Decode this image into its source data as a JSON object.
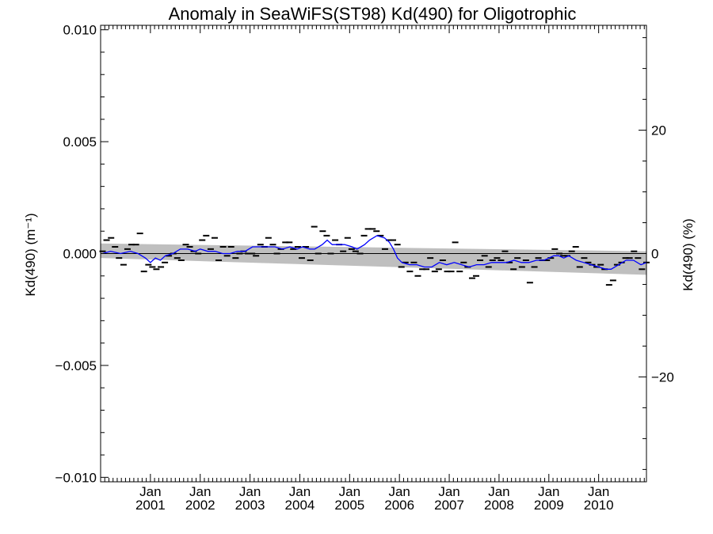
{
  "chart_data": {
    "type": "line",
    "title": "Anomaly in SeaWiFS(ST98) Kd(490) for Oligotrophic",
    "ylabel_left": "Kd(490) (m⁻¹)",
    "ylabel_right": "Kd(490) (%)",
    "xlabel": "",
    "ylim_left": [
      -0.0102,
      0.0102
    ],
    "ylim_right": [
      -37,
      37
    ],
    "xlim": [
      2000.0,
      2010.96
    ],
    "yticks_left": [
      {
        "value": 0.01,
        "label": "0.010"
      },
      {
        "value": 0.005,
        "label": "0.005"
      },
      {
        "value": 0.0,
        "label": "0.000"
      },
      {
        "value": -0.005,
        "label": "−0.005"
      },
      {
        "value": -0.01,
        "label": "−0.010"
      }
    ],
    "yticks_right": [
      {
        "value": 20,
        "label": "20"
      },
      {
        "value": 0,
        "label": "0"
      },
      {
        "value": -20,
        "label": "−20"
      }
    ],
    "xticks": [
      {
        "value": 2001.0,
        "line1": "Jan",
        "line2": "2001"
      },
      {
        "value": 2002.0,
        "line1": "Jan",
        "line2": "2002"
      },
      {
        "value": 2003.0,
        "line1": "Jan",
        "line2": "2003"
      },
      {
        "value": 2004.0,
        "line1": "Jan",
        "line2": "2004"
      },
      {
        "value": 2005.0,
        "line1": "Jan",
        "line2": "2005"
      },
      {
        "value": 2006.0,
        "line1": "Jan",
        "line2": "2006"
      },
      {
        "value": 2007.0,
        "line1": "Jan",
        "line2": "2007"
      },
      {
        "value": 2008.0,
        "line1": "Jan",
        "line2": "2008"
      },
      {
        "value": 2009.0,
        "line1": "Jan",
        "line2": "2009"
      },
      {
        "value": 2010.0,
        "line1": "Jan",
        "line2": "2010"
      }
    ],
    "grid": false,
    "colors": {
      "running_mean": "#0000ff",
      "monthly_points": "#000000",
      "confidence_band": "#bfbfbf",
      "trend_line": "#000000"
    },
    "zero_line": 0.0,
    "confidence_band": {
      "x": [
        2000.0,
        2010.96
      ],
      "upper": [
        0.00045,
        0.0001
      ],
      "lower": [
        -0.0002,
        -0.00095
      ]
    },
    "trend_line": {
      "x": [
        2000.0,
        2010.96
      ],
      "y": [
        0.0,
        0.0
      ]
    },
    "series": [
      {
        "values": [
          [
            2000.04,
            0.0001
          ],
          [
            2000.12,
            0.0006
          ],
          [
            2000.21,
            0.0007
          ],
          [
            2000.29,
            0.0003
          ],
          [
            2000.37,
            -0.0002
          ],
          [
            2000.46,
            -0.0005
          ],
          [
            2000.54,
            0.0002
          ],
          [
            2000.62,
            0.0004
          ],
          [
            2000.71,
            0.0004
          ],
          [
            2000.79,
            0.0009
          ],
          [
            2000.87,
            -0.0008
          ],
          [
            2000.96,
            -0.0005
          ],
          [
            2001.04,
            -0.0006
          ],
          [
            2001.12,
            -0.0007
          ],
          [
            2001.21,
            -0.0006
          ],
          [
            2001.29,
            -0.0004
          ],
          [
            2001.37,
            -0.0001
          ],
          [
            2001.46,
            0.0
          ],
          [
            2001.54,
            -0.0002
          ],
          [
            2001.62,
            -0.0003
          ],
          [
            2001.71,
            0.0004
          ],
          [
            2001.79,
            0.0003
          ],
          [
            2001.87,
            0.0001
          ],
          [
            2001.96,
            0.0
          ],
          [
            2002.04,
            0.0006
          ],
          [
            2002.12,
            0.0008
          ],
          [
            2002.21,
            0.0002
          ],
          [
            2002.29,
            0.0007
          ],
          [
            2002.37,
            -0.0003
          ],
          [
            2002.46,
            0.0003
          ],
          [
            2002.54,
            -0.0001
          ],
          [
            2002.62,
            0.0003
          ],
          [
            2002.71,
            -0.0002
          ],
          [
            2002.79,
            0.0
          ],
          [
            2002.87,
            0.0001
          ],
          [
            2002.96,
            0.0
          ],
          [
            2003.04,
            0.0
          ],
          [
            2003.12,
            -0.0001
          ],
          [
            2003.21,
            0.0004
          ],
          [
            2003.29,
            0.0003
          ],
          [
            2003.37,
            0.0007
          ],
          [
            2003.46,
            0.0004
          ],
          [
            2003.54,
            0.0
          ],
          [
            2003.62,
            0.0002
          ],
          [
            2003.71,
            0.0005
          ],
          [
            2003.79,
            0.0005
          ],
          [
            2003.87,
            0.0002
          ],
          [
            2003.96,
            0.0003
          ],
          [
            2004.04,
            -0.0002
          ],
          [
            2004.12,
            0.0003
          ],
          [
            2004.21,
            -0.0003
          ],
          [
            2004.29,
            0.0012
          ],
          [
            2004.37,
            0.0
          ],
          [
            2004.46,
            0.001
          ],
          [
            2004.54,
            0.0008
          ],
          [
            2004.62,
            0.0
          ],
          [
            2004.71,
            0.0006
          ],
          [
            2004.79,
            0.0004
          ],
          [
            2004.87,
            0.0001
          ],
          [
            2004.96,
            0.0007
          ],
          [
            2005.04,
            0.0002
          ],
          [
            2005.12,
            0.0001
          ],
          [
            2005.21,
            0.0
          ],
          [
            2005.29,
            0.0008
          ],
          [
            2005.37,
            0.0011
          ],
          [
            2005.46,
            0.0011
          ],
          [
            2005.54,
            0.001
          ],
          [
            2005.62,
            0.0008
          ],
          [
            2005.71,
            0.0002
          ],
          [
            2005.79,
            0.0006
          ],
          [
            2005.87,
            0.0006
          ],
          [
            2005.96,
            0.0004
          ],
          [
            2006.04,
            -0.0006
          ],
          [
            2006.12,
            -0.0004
          ],
          [
            2006.21,
            -0.0008
          ],
          [
            2006.29,
            -0.0004
          ],
          [
            2006.37,
            -0.001
          ],
          [
            2006.46,
            -0.0007
          ],
          [
            2006.54,
            -0.0007
          ],
          [
            2006.62,
            -0.0002
          ],
          [
            2006.71,
            -0.0008
          ],
          [
            2006.79,
            -0.0007
          ],
          [
            2006.87,
            -0.0003
          ],
          [
            2006.96,
            -0.0008
          ],
          [
            2007.04,
            -0.0008
          ],
          [
            2007.12,
            0.0005
          ],
          [
            2007.21,
            -0.0008
          ],
          [
            2007.29,
            -0.0004
          ],
          [
            2007.37,
            -0.0006
          ],
          [
            2007.46,
            -0.0011
          ],
          [
            2007.54,
            -0.001
          ],
          [
            2007.62,
            -0.0003
          ],
          [
            2007.71,
            -0.0001
          ],
          [
            2007.79,
            -0.0006
          ],
          [
            2007.87,
            -0.0003
          ],
          [
            2007.96,
            -0.0002
          ],
          [
            2008.04,
            -0.0003
          ],
          [
            2008.12,
            0.0001
          ],
          [
            2008.21,
            -0.0004
          ],
          [
            2008.29,
            -0.0007
          ],
          [
            2008.37,
            -0.0002
          ],
          [
            2008.46,
            -0.0006
          ],
          [
            2008.54,
            -0.0003
          ],
          [
            2008.62,
            -0.0013
          ],
          [
            2008.71,
            -0.0006
          ],
          [
            2008.79,
            -0.0002
          ],
          [
            2008.87,
            -0.0003
          ],
          [
            2008.96,
            -0.0003
          ],
          [
            2009.04,
            -0.0002
          ],
          [
            2009.12,
            0.0002
          ],
          [
            2009.21,
            0.0
          ],
          [
            2009.29,
            -0.0001
          ],
          [
            2009.37,
            -0.0001
          ],
          [
            2009.46,
            0.0001
          ],
          [
            2009.54,
            0.0003
          ],
          [
            2009.62,
            -0.0006
          ],
          [
            2009.71,
            -0.0002
          ],
          [
            2009.79,
            -0.0004
          ],
          [
            2009.87,
            -0.0005
          ],
          [
            2009.96,
            -0.0006
          ],
          [
            2010.04,
            -0.0005
          ],
          [
            2010.12,
            -0.0007
          ],
          [
            2010.21,
            -0.0014
          ],
          [
            2010.29,
            -0.0012
          ],
          [
            2010.37,
            -0.0005
          ],
          [
            2010.46,
            -0.0004
          ],
          [
            2010.54,
            -0.0002
          ],
          [
            2010.62,
            -0.0002
          ],
          [
            2010.71,
            0.0001
          ],
          [
            2010.79,
            -0.0002
          ],
          [
            2010.87,
            -0.0007
          ],
          [
            2010.96,
            -0.0004
          ]
        ]
      },
      {
        "values": [
          [
            2000.04,
            0.0
          ],
          [
            2000.2,
            0.0001
          ],
          [
            2000.4,
            0.0
          ],
          [
            2000.6,
            0.0001
          ],
          [
            2000.75,
            0.0
          ],
          [
            2000.9,
            -0.0002
          ],
          [
            2001.0,
            -0.0004
          ],
          [
            2001.1,
            -0.0002
          ],
          [
            2001.2,
            -0.0003
          ],
          [
            2001.3,
            -0.0001
          ],
          [
            2001.45,
            0.0
          ],
          [
            2001.6,
            0.0002
          ],
          [
            2001.75,
            0.0002
          ],
          [
            2001.9,
            0.0001
          ],
          [
            2002.0,
            0.0002
          ],
          [
            2002.15,
            0.0001
          ],
          [
            2002.3,
            0.0001
          ],
          [
            2002.45,
            0.0
          ],
          [
            2002.6,
            0.0
          ],
          [
            2002.75,
            0.0001
          ],
          [
            2002.9,
            0.0001
          ],
          [
            2003.05,
            0.0003
          ],
          [
            2003.2,
            0.0003
          ],
          [
            2003.35,
            0.0003
          ],
          [
            2003.5,
            0.0003
          ],
          [
            2003.65,
            0.0002
          ],
          [
            2003.8,
            0.0003
          ],
          [
            2003.95,
            0.0002
          ],
          [
            2004.05,
            0.0003
          ],
          [
            2004.2,
            0.0002
          ],
          [
            2004.3,
            0.0002
          ],
          [
            2004.45,
            0.0004
          ],
          [
            2004.55,
            0.0006
          ],
          [
            2004.65,
            0.0004
          ],
          [
            2004.8,
            0.0004
          ],
          [
            2004.9,
            0.0004
          ],
          [
            2005.05,
            0.0003
          ],
          [
            2005.15,
            0.0002
          ],
          [
            2005.3,
            0.0004
          ],
          [
            2005.4,
            0.0006
          ],
          [
            2005.55,
            0.0008
          ],
          [
            2005.7,
            0.0007
          ],
          [
            2005.8,
            0.0005
          ],
          [
            2005.88,
            0.0002
          ],
          [
            2005.96,
            -0.0002
          ],
          [
            2006.05,
            -0.0004
          ],
          [
            2006.2,
            -0.0005
          ],
          [
            2006.35,
            -0.0005
          ],
          [
            2006.5,
            -0.0006
          ],
          [
            2006.65,
            -0.0006
          ],
          [
            2006.8,
            -0.0004
          ],
          [
            2006.95,
            -0.0005
          ],
          [
            2007.1,
            -0.0004
          ],
          [
            2007.25,
            -0.0005
          ],
          [
            2007.4,
            -0.0006
          ],
          [
            2007.55,
            -0.0005
          ],
          [
            2007.7,
            -0.0005
          ],
          [
            2007.85,
            -0.0004
          ],
          [
            2008.0,
            -0.0004
          ],
          [
            2008.15,
            -0.0004
          ],
          [
            2008.3,
            -0.0003
          ],
          [
            2008.45,
            -0.0004
          ],
          [
            2008.6,
            -0.0004
          ],
          [
            2008.75,
            -0.0003
          ],
          [
            2008.9,
            -0.0003
          ],
          [
            2009.0,
            -0.0002
          ],
          [
            2009.1,
            -0.0001
          ],
          [
            2009.2,
            -0.0001
          ],
          [
            2009.3,
            -0.0002
          ],
          [
            2009.4,
            -0.0001
          ],
          [
            2009.55,
            -0.0003
          ],
          [
            2009.7,
            -0.0004
          ],
          [
            2009.85,
            -0.0005
          ],
          [
            2010.0,
            -0.0006
          ],
          [
            2010.15,
            -0.0007
          ],
          [
            2010.25,
            -0.0007
          ],
          [
            2010.4,
            -0.0005
          ],
          [
            2010.55,
            -0.0003
          ],
          [
            2010.7,
            -0.0003
          ],
          [
            2010.85,
            -0.0005
          ],
          [
            2010.96,
            -0.0004
          ]
        ]
      }
    ]
  }
}
